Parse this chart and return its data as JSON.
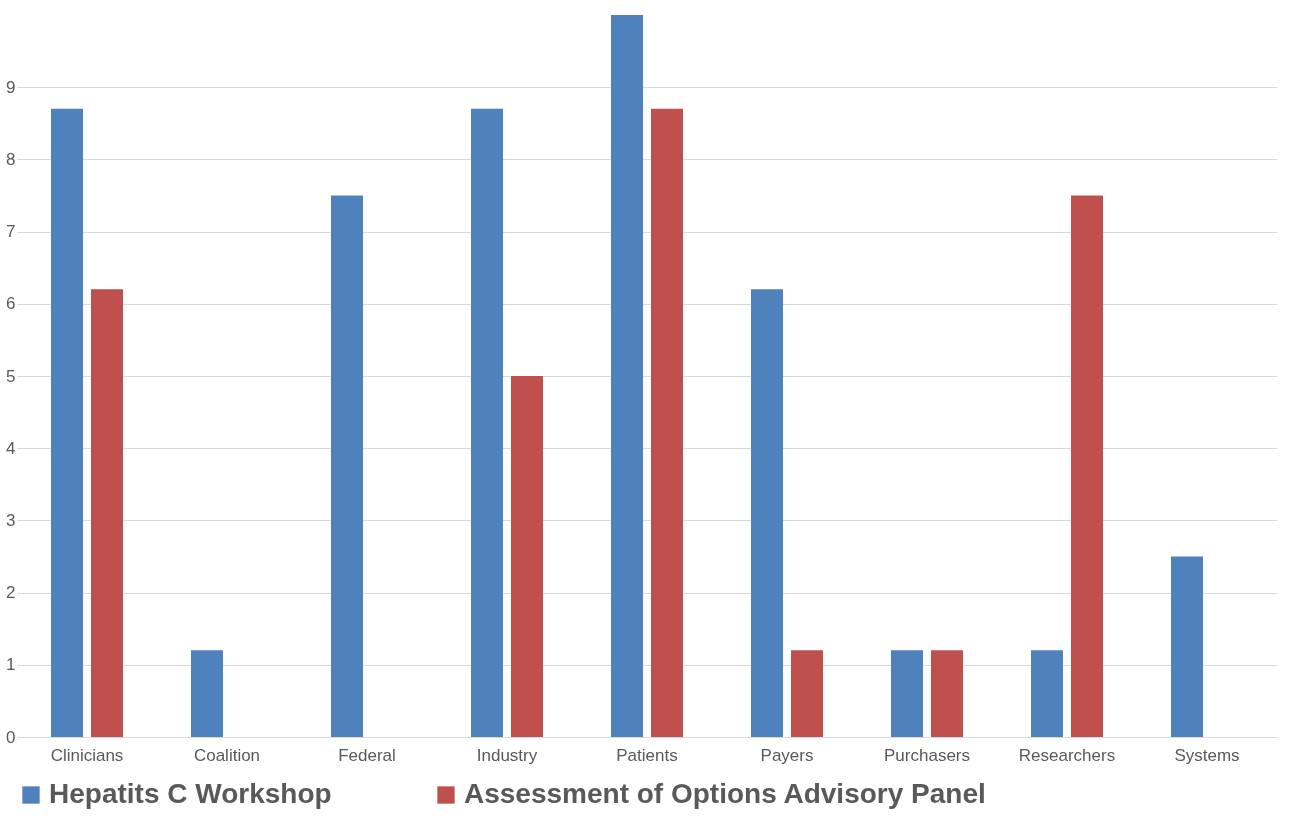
{
  "chart_data": {
    "type": "bar",
    "categories": [
      "Clinicians",
      "Coalition",
      "Federal",
      "Industry",
      "Patients",
      "Payers",
      "Purchasers",
      "Researchers",
      "Systems"
    ],
    "series": [
      {
        "name": "Hepatits C Workshop",
        "color": "#4f81bd",
        "values": [
          8.7,
          1.2,
          7.5,
          8.7,
          10.0,
          6.2,
          1.2,
          1.2,
          2.5
        ]
      },
      {
        "name": "Assessment of Options Advisory Panel",
        "color": "#c0504d",
        "values": [
          6.2,
          null,
          null,
          5.0,
          8.7,
          1.2,
          1.2,
          7.5,
          null
        ]
      }
    ],
    "ylim": [
      0,
      10
    ],
    "yticks": [
      0,
      1,
      2,
      3,
      4,
      5,
      6,
      7,
      8,
      9
    ],
    "grid": true,
    "legend": "bottom"
  }
}
